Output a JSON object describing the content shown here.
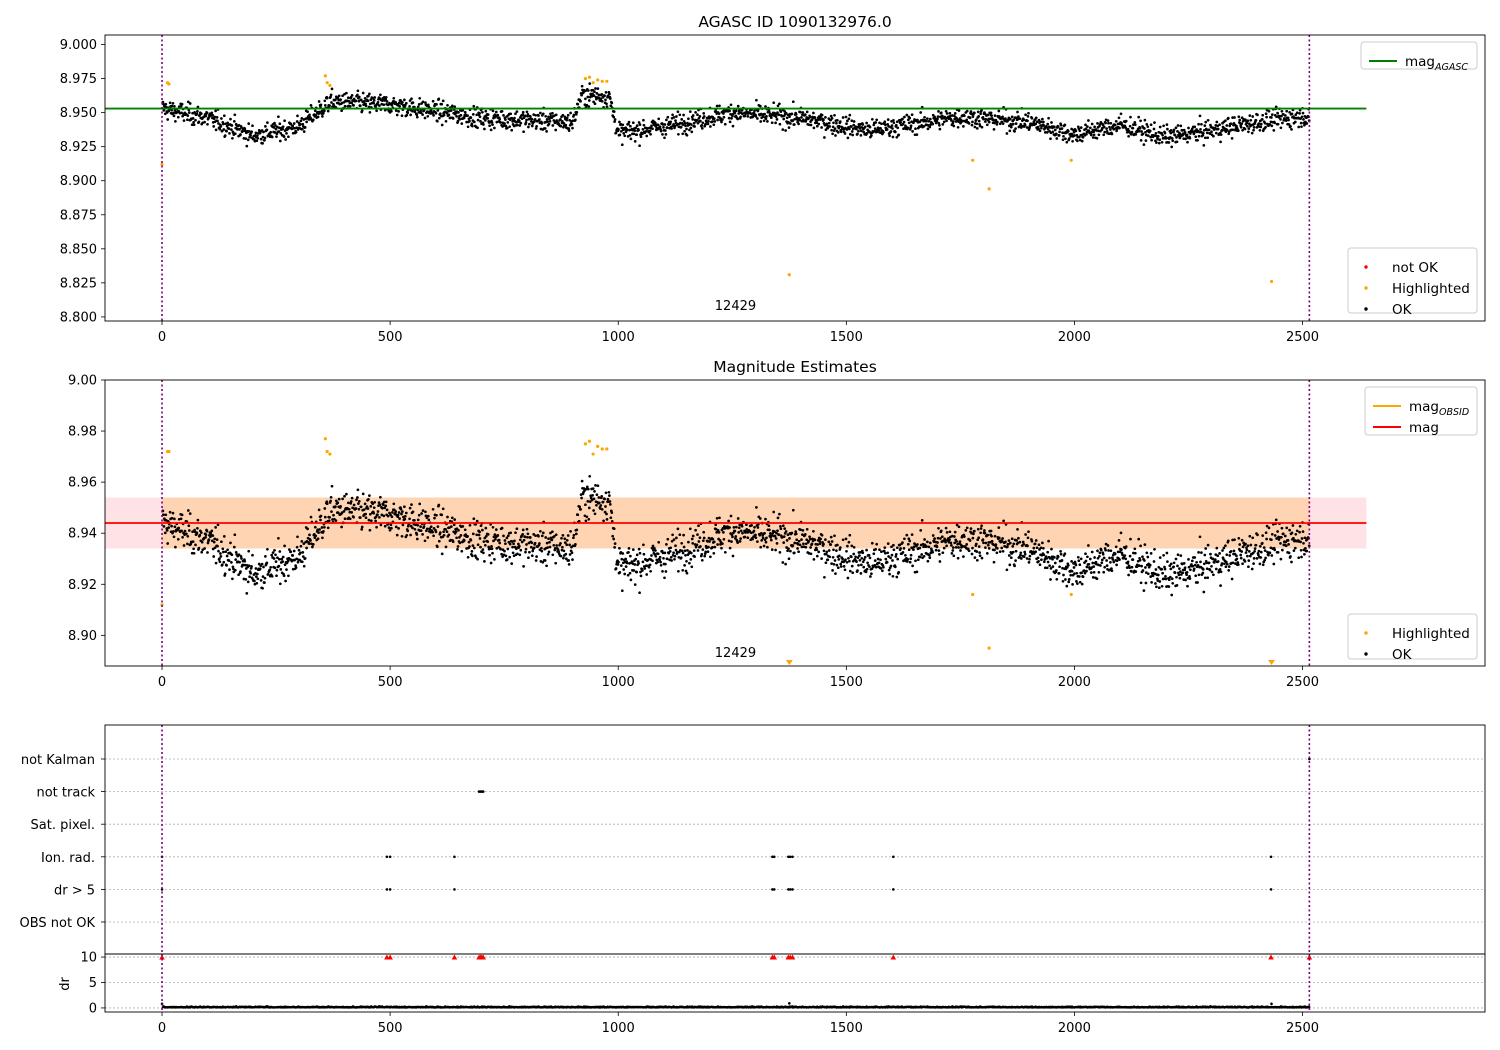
{
  "chart_data": [
    {
      "type": "scatter",
      "title": "AGASC ID 1090132976.0",
      "xlim": [
        -125,
        2900
      ],
      "ylim": [
        8.797,
        9.007
      ],
      "xticks": [
        0,
        500,
        1000,
        1500,
        2000,
        2500
      ],
      "yticks": [
        8.8,
        8.825,
        8.85,
        8.875,
        8.9,
        8.925,
        8.95,
        8.975,
        9.0
      ],
      "ytick_labels": [
        "8.800",
        "8.825",
        "8.850",
        "8.875",
        "8.900",
        "8.925",
        "8.950",
        "8.975",
        "9.000"
      ],
      "obsid_bounds": [
        0,
        2515
      ],
      "obsid_label": {
        "text": "12429",
        "x": 1257,
        "y": 8.805
      },
      "hline": {
        "name": "mag_AGASC",
        "y": 8.953,
        "x": [
          -125,
          2640
        ],
        "color": "#008000"
      },
      "legends": [
        {
          "placement": "upper-right",
          "entries": [
            {
              "label": "mag",
              "sub": "AGASC",
              "type": "line",
              "color": "#008000"
            }
          ]
        },
        {
          "placement": "lower-right",
          "entries": [
            {
              "label": "not OK",
              "type": "point",
              "color": "#ff0000"
            },
            {
              "label": "Highlighted",
              "type": "point",
              "color": "#ffa500"
            },
            {
              "label": "OK",
              "type": "point",
              "color": "#000000"
            }
          ]
        }
      ],
      "series": [
        {
          "name": "OK",
          "color": "#000000",
          "description": "about 2500 samples, x 0-2515, y mostly 8.92-8.97",
          "trend": [
            [
              0,
              8.953
            ],
            [
              100,
              8.946
            ],
            [
              200,
              8.933
            ],
            [
              300,
              8.94
            ],
            [
              370,
              8.958
            ],
            [
              500,
              8.956
            ],
            [
              700,
              8.946
            ],
            [
              900,
              8.943
            ],
            [
              920,
              8.963
            ],
            [
              980,
              8.962
            ],
            [
              1000,
              8.935
            ],
            [
              1100,
              8.94
            ],
            [
              1250,
              8.95
            ],
            [
              1400,
              8.946
            ],
            [
              1550,
              8.937
            ],
            [
              1750,
              8.947
            ],
            [
              1900,
              8.943
            ],
            [
              2000,
              8.934
            ],
            [
              2100,
              8.941
            ],
            [
              2200,
              8.932
            ],
            [
              2300,
              8.937
            ],
            [
              2400,
              8.943
            ],
            [
              2515,
              8.948
            ]
          ]
        },
        {
          "name": "Highlighted",
          "color": "#ffa500",
          "points": [
            [
              12,
              8.972
            ],
            [
              15,
              8.971
            ],
            [
              358,
              8.977
            ],
            [
              362,
              8.972
            ],
            [
              368,
              8.97
            ],
            [
              928,
              8.975
            ],
            [
              937,
              8.976
            ],
            [
              945,
              8.972
            ],
            [
              955,
              8.974
            ],
            [
              965,
              8.973
            ],
            [
              975,
              8.973
            ],
            [
              1375,
              8.831
            ],
            [
              1777,
              8.915
            ],
            [
              1813,
              8.894
            ],
            [
              1993,
              8.915
            ],
            [
              2432,
              8.826
            ],
            [
              0,
              8.912
            ]
          ]
        }
      ]
    },
    {
      "type": "scatter",
      "title": "Magnitude Estimates",
      "xlim": [
        -125,
        2900
      ],
      "ylim": [
        8.888,
        9.0
      ],
      "xticks": [
        0,
        500,
        1000,
        1500,
        2000,
        2500
      ],
      "yticks": [
        8.9,
        8.92,
        8.94,
        8.96,
        8.98,
        9.0
      ],
      "ytick_labels": [
        "8.90",
        "8.92",
        "8.94",
        "8.96",
        "8.98",
        "9.00"
      ],
      "obsid_bounds": [
        0,
        2515
      ],
      "obsid_label": {
        "text": "12429",
        "x": 1257,
        "y": 8.8915
      },
      "hline": {
        "name": "mag",
        "y": 8.944,
        "x": [
          -125,
          2640
        ],
        "color": "#ff0000"
      },
      "bands": [
        {
          "y": [
            8.934,
            8.954
          ],
          "x": [
            -125,
            2640
          ],
          "color": "#ffb6c1",
          "opacity": 0.4
        },
        {
          "y": [
            8.934,
            8.954
          ],
          "x": [
            0,
            2515
          ],
          "color": "#ffa500",
          "opacity": 0.22
        }
      ],
      "legends": [
        {
          "placement": "upper-right",
          "entries": [
            {
              "label": "mag",
              "sub": "OBSID",
              "type": "line",
              "color": "#ffa500"
            },
            {
              "label": "mag",
              "type": "line",
              "color": "#ff0000"
            }
          ]
        },
        {
          "placement": "lower-right",
          "entries": [
            {
              "label": "Highlighted",
              "type": "point",
              "color": "#ffa500"
            },
            {
              "label": "OK",
              "type": "point",
              "color": "#000000"
            }
          ]
        }
      ],
      "series": [
        {
          "name": "OK",
          "color": "#000000",
          "description": "same samples as top panel on a finer magnitude scale"
        },
        {
          "name": "Highlighted",
          "color": "#ffa500",
          "points": [
            [
              12,
              8.972
            ],
            [
              15,
              8.972
            ],
            [
              358,
              8.977
            ],
            [
              362,
              8.972
            ],
            [
              368,
              8.971
            ],
            [
              928,
              8.975
            ],
            [
              937,
              8.976
            ],
            [
              945,
              8.971
            ],
            [
              955,
              8.974
            ],
            [
              965,
              8.973
            ],
            [
              975,
              8.973
            ],
            [
              1777,
              8.916
            ],
            [
              1813,
              8.895
            ],
            [
              1993,
              8.916
            ],
            [
              0,
              8.912
            ]
          ],
          "offscale_markers": [
            1375,
            2432
          ]
        }
      ]
    },
    {
      "type": "scatter",
      "title": "",
      "xlim": [
        -125,
        2900
      ],
      "xticks": [
        0,
        500,
        1000,
        1500,
        2000,
        2500
      ],
      "obsid_bounds": [
        0,
        2515
      ],
      "flag_rows": [
        "not Kalman",
        "not track",
        "Sat. pixel.",
        "Ion. rad.",
        "dr > 5",
        "OBS not OK"
      ],
      "flags": {
        "not Kalman": [
          2515
        ],
        "not track": [
          695,
          698,
          701,
          704
        ],
        "Sat. pixel.": [],
        "Ion. rad.": [
          0,
          493,
          500,
          641,
          1338,
          1342,
          1373,
          1377,
          1382,
          1603,
          2431
        ],
        "dr > 5": [
          0,
          493,
          500,
          641,
          1338,
          1342,
          1373,
          1377,
          1382,
          1603,
          2431
        ],
        "OBS not OK": []
      },
      "dr_panel": {
        "ylabel": "dr",
        "yticks": [
          0,
          5,
          10
        ],
        "ylim": [
          -0.8,
          10.6
        ],
        "description": "dr values mostly 0.0-0.6 for all samples",
        "spikes": [
          [
            0,
            0.8
          ],
          [
            1375,
            0.9
          ],
          [
            2432,
            0.8
          ]
        ],
        "clipped_markers": [
          0,
          493,
          500,
          641,
          695,
          698,
          701,
          704,
          1338,
          1342,
          1373,
          1377,
          1382,
          1603,
          2431,
          2515
        ],
        "clip_value": 10
      }
    }
  ]
}
